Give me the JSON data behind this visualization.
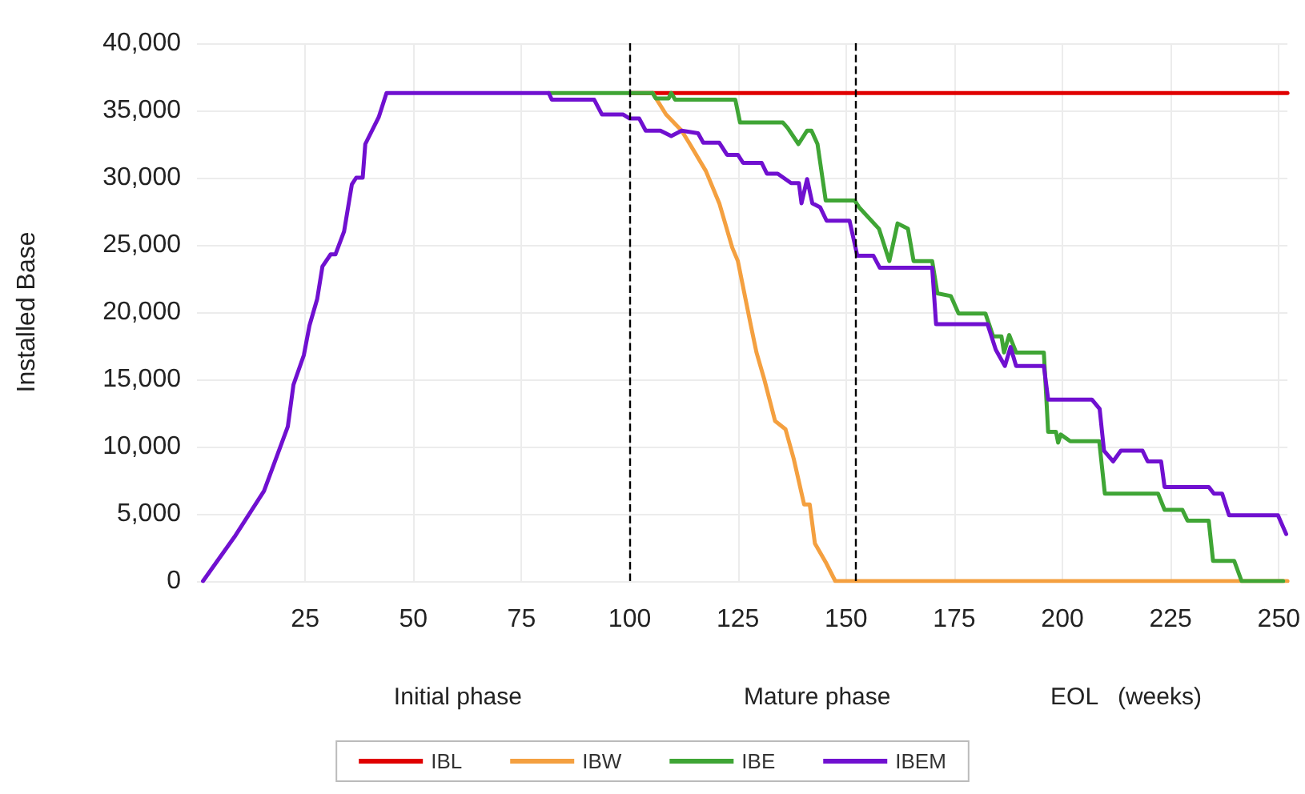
{
  "chart_data": {
    "type": "line",
    "ylabel": "Installed Base",
    "annotations": [
      "Initial phase",
      "Mature phase",
      "EOL   (weeks)"
    ],
    "xlim": [
      0,
      252
    ],
    "xticks": [
      25,
      50,
      75,
      100,
      125,
      150,
      175,
      200,
      225,
      250
    ],
    "ylim": [
      0,
      40000
    ],
    "yticks": [
      0,
      {
        "value": 5000,
        "label": "5,000"
      },
      {
        "value": 10000,
        "label": "10,000"
      },
      {
        "value": 15000,
        "label": "15,000"
      },
      {
        "value": 20000,
        "label": "20,000"
      },
      {
        "value": 25000,
        "label": "25,000"
      },
      {
        "value": 30000,
        "label": "30,000"
      },
      {
        "value": 35000,
        "label": "35,000"
      },
      {
        "value": 40000,
        "label": "40,000"
      }
    ],
    "grid": true,
    "legend": "bottom",
    "marker": "none",
    "line_style": "solid",
    "ref_lines": [
      {
        "axis": "x",
        "value": 100,
        "color": "#000000",
        "line_style": "dashed"
      },
      {
        "axis": "x",
        "value": 152,
        "color": "#000000",
        "line_style": "dashed"
      }
    ],
    "series": [
      {
        "name": "IBL",
        "color": "#e00000",
        "x": [
          100,
          252
        ],
        "values": [
          36300,
          36300
        ]
      },
      {
        "name": "IBW",
        "color": "#f4a040",
        "x": [
          105.3,
          108.4,
          112,
          113.9,
          117.6,
          120.7,
          123.7,
          125,
          128,
          129.3,
          131.1,
          133.6,
          136,
          137.9,
          140.3,
          141.6,
          142.8,
          145.3,
          147.5,
          252
        ],
        "values": [
          36300,
          34700,
          33500,
          32500,
          30500,
          28100,
          24800,
          23800,
          19000,
          17000,
          15000,
          11900,
          11300,
          9100,
          5700,
          5700,
          2800,
          1400,
          0,
          0
        ]
      },
      {
        "name": "IBE",
        "color": "#3fa535",
        "x": [
          81.3,
          105.3,
          106,
          109,
          109.6,
          110.5,
          124.4,
          125.5,
          135.4,
          136.5,
          139,
          141,
          142,
          143.4,
          145.3,
          152,
          153,
          157.6,
          160,
          161.9,
          164.3,
          165.6,
          169.9,
          171.1,
          174.2,
          176,
          182.2,
          184,
          185.9,
          186.5,
          187.7,
          189.3,
          195.7,
          196.7,
          198.5,
          199,
          199.6,
          201.8,
          208.5,
          209.8,
          222.1,
          223.6,
          227.7,
          228.9,
          233.8,
          234.8,
          239.7,
          241.4,
          251
        ],
        "values": [
          36300,
          36300,
          35900,
          35900,
          36300,
          35800,
          35800,
          34100,
          34100,
          33700,
          32500,
          33500,
          33500,
          32500,
          28300,
          28300,
          27800,
          26200,
          23800,
          26600,
          26200,
          23800,
          23800,
          21400,
          21200,
          19900,
          19900,
          18200,
          18200,
          17000,
          18300,
          17000,
          17000,
          11100,
          11100,
          10300,
          10900,
          10400,
          10400,
          6500,
          6500,
          5300,
          5300,
          4500,
          4500,
          1500,
          1500,
          0,
          0
        ]
      },
      {
        "name": "IBEM",
        "color": "#7010d0",
        "x": [
          1.4,
          8.7,
          9.5,
          15.5,
          21,
          22.3,
          24.7,
          26,
          27.8,
          29,
          30.9,
          32,
          34,
          35.8,
          36.8,
          38.3,
          38.9,
          42,
          43.8,
          81.3,
          82,
          91.8,
          93.6,
          98.5,
          100,
          102.2,
          103.7,
          107.1,
          109.6,
          112,
          115.8,
          117,
          120.7,
          122.5,
          125,
          126.2,
          130.5,
          131.7,
          134.2,
          137.3,
          139.1,
          139.7,
          141,
          142.2,
          144,
          145.5,
          150.8,
          152.6,
          156.3,
          157.8,
          169.9,
          170.8,
          182.7,
          184.6,
          186.7,
          188,
          189.3,
          195.7,
          196.7,
          206.8,
          208.6,
          209.6,
          211.7,
          213.5,
          218.5,
          219.7,
          222.8,
          223.6,
          233.8,
          235,
          236.9,
          238.5,
          249.8,
          251.7
        ],
        "values": [
          0,
          3300,
          3700,
          6700,
          11500,
          14600,
          16800,
          19000,
          21000,
          23400,
          24300,
          24300,
          26000,
          29500,
          30000,
          30000,
          32500,
          34500,
          36300,
          36300,
          35800,
          35800,
          34700,
          34700,
          34400,
          34400,
          33500,
          33500,
          33100,
          33500,
          33300,
          32600,
          32600,
          31700,
          31700,
          31100,
          31100,
          30300,
          30300,
          29600,
          29600,
          28100,
          29900,
          28100,
          27800,
          26800,
          26800,
          24200,
          24200,
          23300,
          23300,
          19100,
          19100,
          17200,
          16000,
          17400,
          16000,
          16000,
          13500,
          13500,
          12800,
          9700,
          8900,
          9700,
          9700,
          8900,
          8900,
          7000,
          7000,
          6500,
          6500,
          4900,
          4900,
          3500
        ]
      }
    ]
  }
}
